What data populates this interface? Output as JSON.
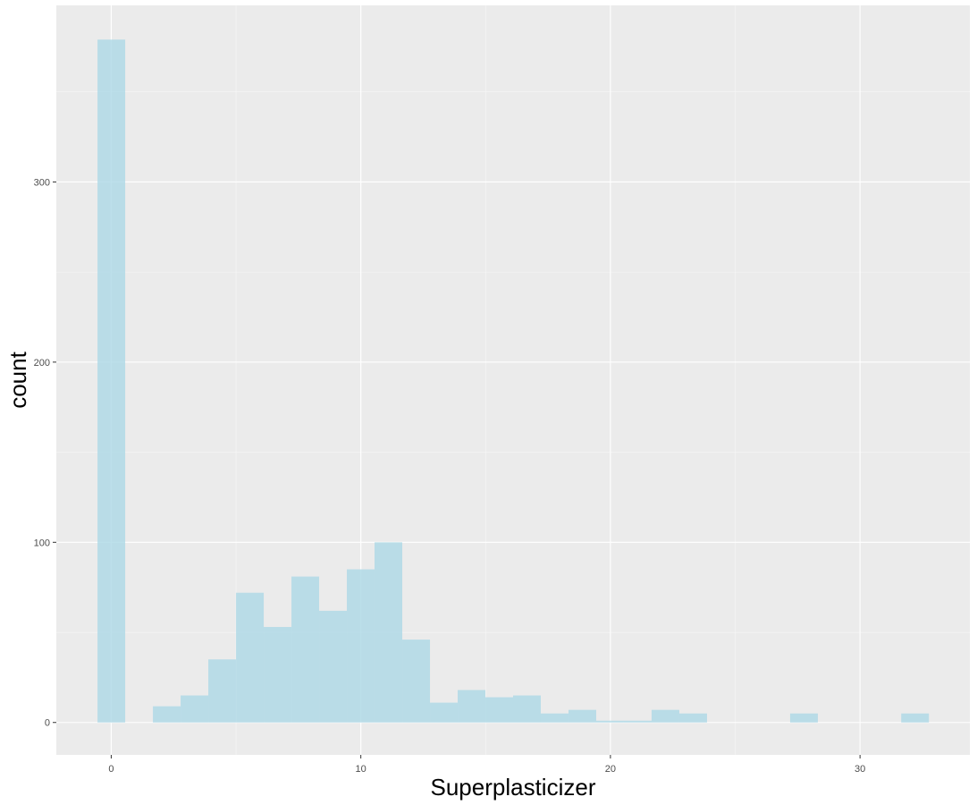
{
  "chart_data": {
    "type": "bar",
    "title": "",
    "xlabel": "Superplasticizer",
    "ylabel": "count",
    "xlim": [
      -2.2,
      34.4
    ],
    "ylim": [
      -18,
      398
    ],
    "x_ticks": [
      0,
      10,
      20,
      30
    ],
    "y_ticks": [
      0,
      100,
      200,
      300
    ],
    "x_minor_ticks": [
      5,
      15,
      25
    ],
    "y_minor_ticks": [
      50,
      150,
      250,
      350
    ],
    "grid": true,
    "bin_width": 1.11,
    "series": [
      {
        "bins": [
          {
            "x_start": -0.55,
            "x_end": 0.56,
            "count": 379
          },
          {
            "x_start": 1.67,
            "x_end": 2.78,
            "count": 9
          },
          {
            "x_start": 2.78,
            "x_end": 3.89,
            "count": 15
          },
          {
            "x_start": 3.89,
            "x_end": 5.0,
            "count": 35
          },
          {
            "x_start": 5.0,
            "x_end": 6.11,
            "count": 72
          },
          {
            "x_start": 6.11,
            "x_end": 7.22,
            "count": 53
          },
          {
            "x_start": 7.22,
            "x_end": 8.33,
            "count": 81
          },
          {
            "x_start": 8.33,
            "x_end": 9.44,
            "count": 62
          },
          {
            "x_start": 9.44,
            "x_end": 10.55,
            "count": 85
          },
          {
            "x_start": 10.55,
            "x_end": 11.66,
            "count": 100
          },
          {
            "x_start": 11.66,
            "x_end": 12.77,
            "count": 46
          },
          {
            "x_start": 12.77,
            "x_end": 13.88,
            "count": 11
          },
          {
            "x_start": 13.88,
            "x_end": 14.99,
            "count": 18
          },
          {
            "x_start": 14.99,
            "x_end": 16.1,
            "count": 14
          },
          {
            "x_start": 16.1,
            "x_end": 17.21,
            "count": 15
          },
          {
            "x_start": 17.21,
            "x_end": 18.32,
            "count": 5
          },
          {
            "x_start": 18.32,
            "x_end": 19.43,
            "count": 7
          },
          {
            "x_start": 19.43,
            "x_end": 20.54,
            "count": 1
          },
          {
            "x_start": 20.54,
            "x_end": 21.65,
            "count": 1
          },
          {
            "x_start": 21.65,
            "x_end": 22.76,
            "count": 7
          },
          {
            "x_start": 22.76,
            "x_end": 23.87,
            "count": 5
          },
          {
            "x_start": 27.2,
            "x_end": 28.31,
            "count": 5
          },
          {
            "x_start": 31.65,
            "x_end": 32.76,
            "count": 5
          }
        ]
      }
    ],
    "colors": {
      "panel_background": "#EBEBEB",
      "grid_major": "#FFFFFF",
      "grid_minor": "#F7F7F7",
      "bar_fill": "#ADD8E6",
      "bar_opacity": 0.8,
      "tick_color": "#333333",
      "tick_label_color": "#4D4D4D"
    }
  }
}
